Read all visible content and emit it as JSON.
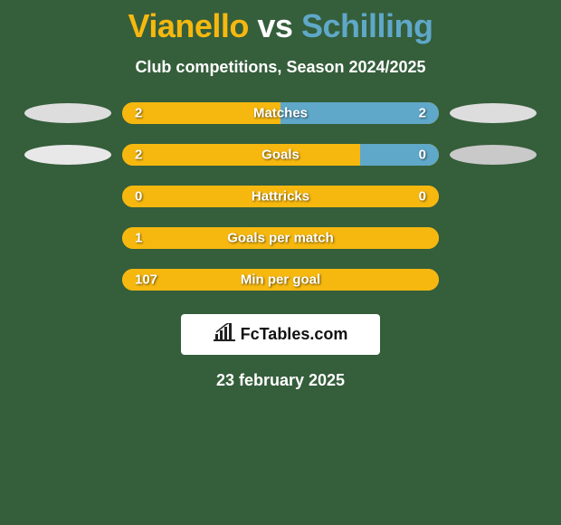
{
  "background_color": "#355e3b",
  "title": {
    "player1": "Vianello",
    "vs": "vs",
    "player2": "Schilling",
    "player1_color": "#f6b80f",
    "vs_color": "#ffffff",
    "player2_color": "#5fa8c9",
    "fontsize": 36
  },
  "subtitle": {
    "text": "Club competitions, Season 2024/2025",
    "color": "#ffffff",
    "fontsize": 18
  },
  "left_color": "#f6b80f",
  "right_color": "#5fa8c9",
  "value_text_color": "#ffffff",
  "label_text_color": "#ffffff",
  "rows": [
    {
      "left_value": "2",
      "right_value": "2",
      "label": "Matches",
      "left_pct": 50,
      "right_pct": 50,
      "badge_left": true,
      "badge_right": true,
      "badge_left_color": "#dddddd",
      "badge_right_color": "#dddddd"
    },
    {
      "left_value": "2",
      "right_value": "0",
      "label": "Goals",
      "left_pct": 75,
      "right_pct": 25,
      "badge_left": true,
      "badge_right": true,
      "badge_left_color": "#e8e8e8",
      "badge_right_color": "#c9c9c9"
    },
    {
      "left_value": "0",
      "right_value": "0",
      "label": "Hattricks",
      "left_pct": 100,
      "right_pct": 0,
      "badge_left": false,
      "badge_right": false
    },
    {
      "left_value": "1",
      "right_value": "",
      "label": "Goals per match",
      "left_pct": 100,
      "right_pct": 0,
      "badge_left": false,
      "badge_right": false
    },
    {
      "left_value": "107",
      "right_value": "",
      "label": "Min per goal",
      "left_pct": 100,
      "right_pct": 0,
      "badge_left": false,
      "badge_right": false
    }
  ],
  "logo": {
    "text": "FcTables.com",
    "box_bg": "#ffffff",
    "icon_color": "#222222"
  },
  "footer_date": "23 february 2025"
}
